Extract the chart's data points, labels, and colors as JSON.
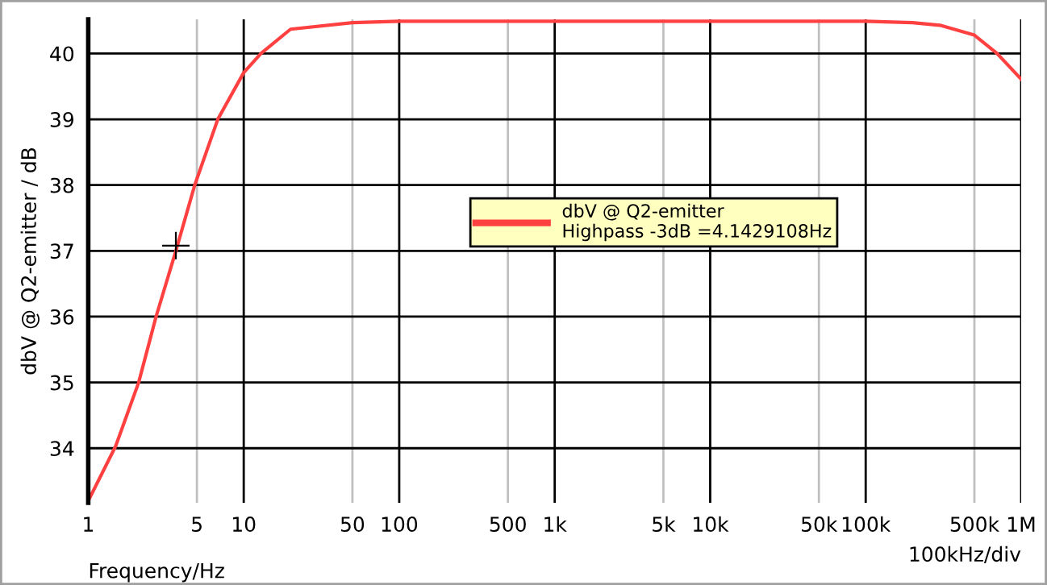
{
  "chart_data": {
    "type": "line",
    "xlabel": "Frequency/Hz",
    "ylabel": "dbV @ Q2-emitter / dB",
    "x": [
      1,
      1.5,
      2.11,
      2.73,
      3.66,
      4.84,
      6.81,
      10,
      12.9,
      20,
      50,
      100,
      1000,
      10000,
      100000,
      200000,
      300000,
      500000,
      700000,
      1000000
    ],
    "series": [
      {
        "name": "dbV @ Q2-emitter",
        "color": "#ff4040",
        "values": [
          33.2,
          34.03,
          35.0,
          36.0,
          37.0,
          38.0,
          39.0,
          39.71,
          40.0,
          40.37,
          40.47,
          40.49,
          40.49,
          40.49,
          40.49,
          40.47,
          40.43,
          40.28,
          40.0,
          39.61
        ]
      },
      {
        "type": "scatter",
        "marker": "cross",
        "color": "#000000",
        "x": [
          3.66
        ],
        "values": [
          37.08
        ]
      }
    ],
    "annotations": [
      "Highpass -3dB =4.1429108Hz",
      "100kHz/div"
    ],
    "log": "x",
    "xlim": [
      1,
      1000000
    ],
    "ylim": [
      33.17,
      40.52
    ],
    "xticks": [
      1,
      5,
      10,
      50,
      100,
      500,
      {
        "value": 1000,
        "label": "1k"
      },
      {
        "value": 5000,
        "label": "5k"
      },
      {
        "value": 10000,
        "label": "10k"
      },
      {
        "value": 50000,
        "label": "50k"
      },
      {
        "value": 100000,
        "label": "100k"
      },
      {
        "value": 500000,
        "label": "500k"
      },
      {
        "value": 1000000,
        "label": "1M"
      }
    ],
    "yticks": [
      34,
      35,
      36,
      37,
      38,
      39,
      40
    ],
    "grid": true,
    "legend": "center"
  }
}
